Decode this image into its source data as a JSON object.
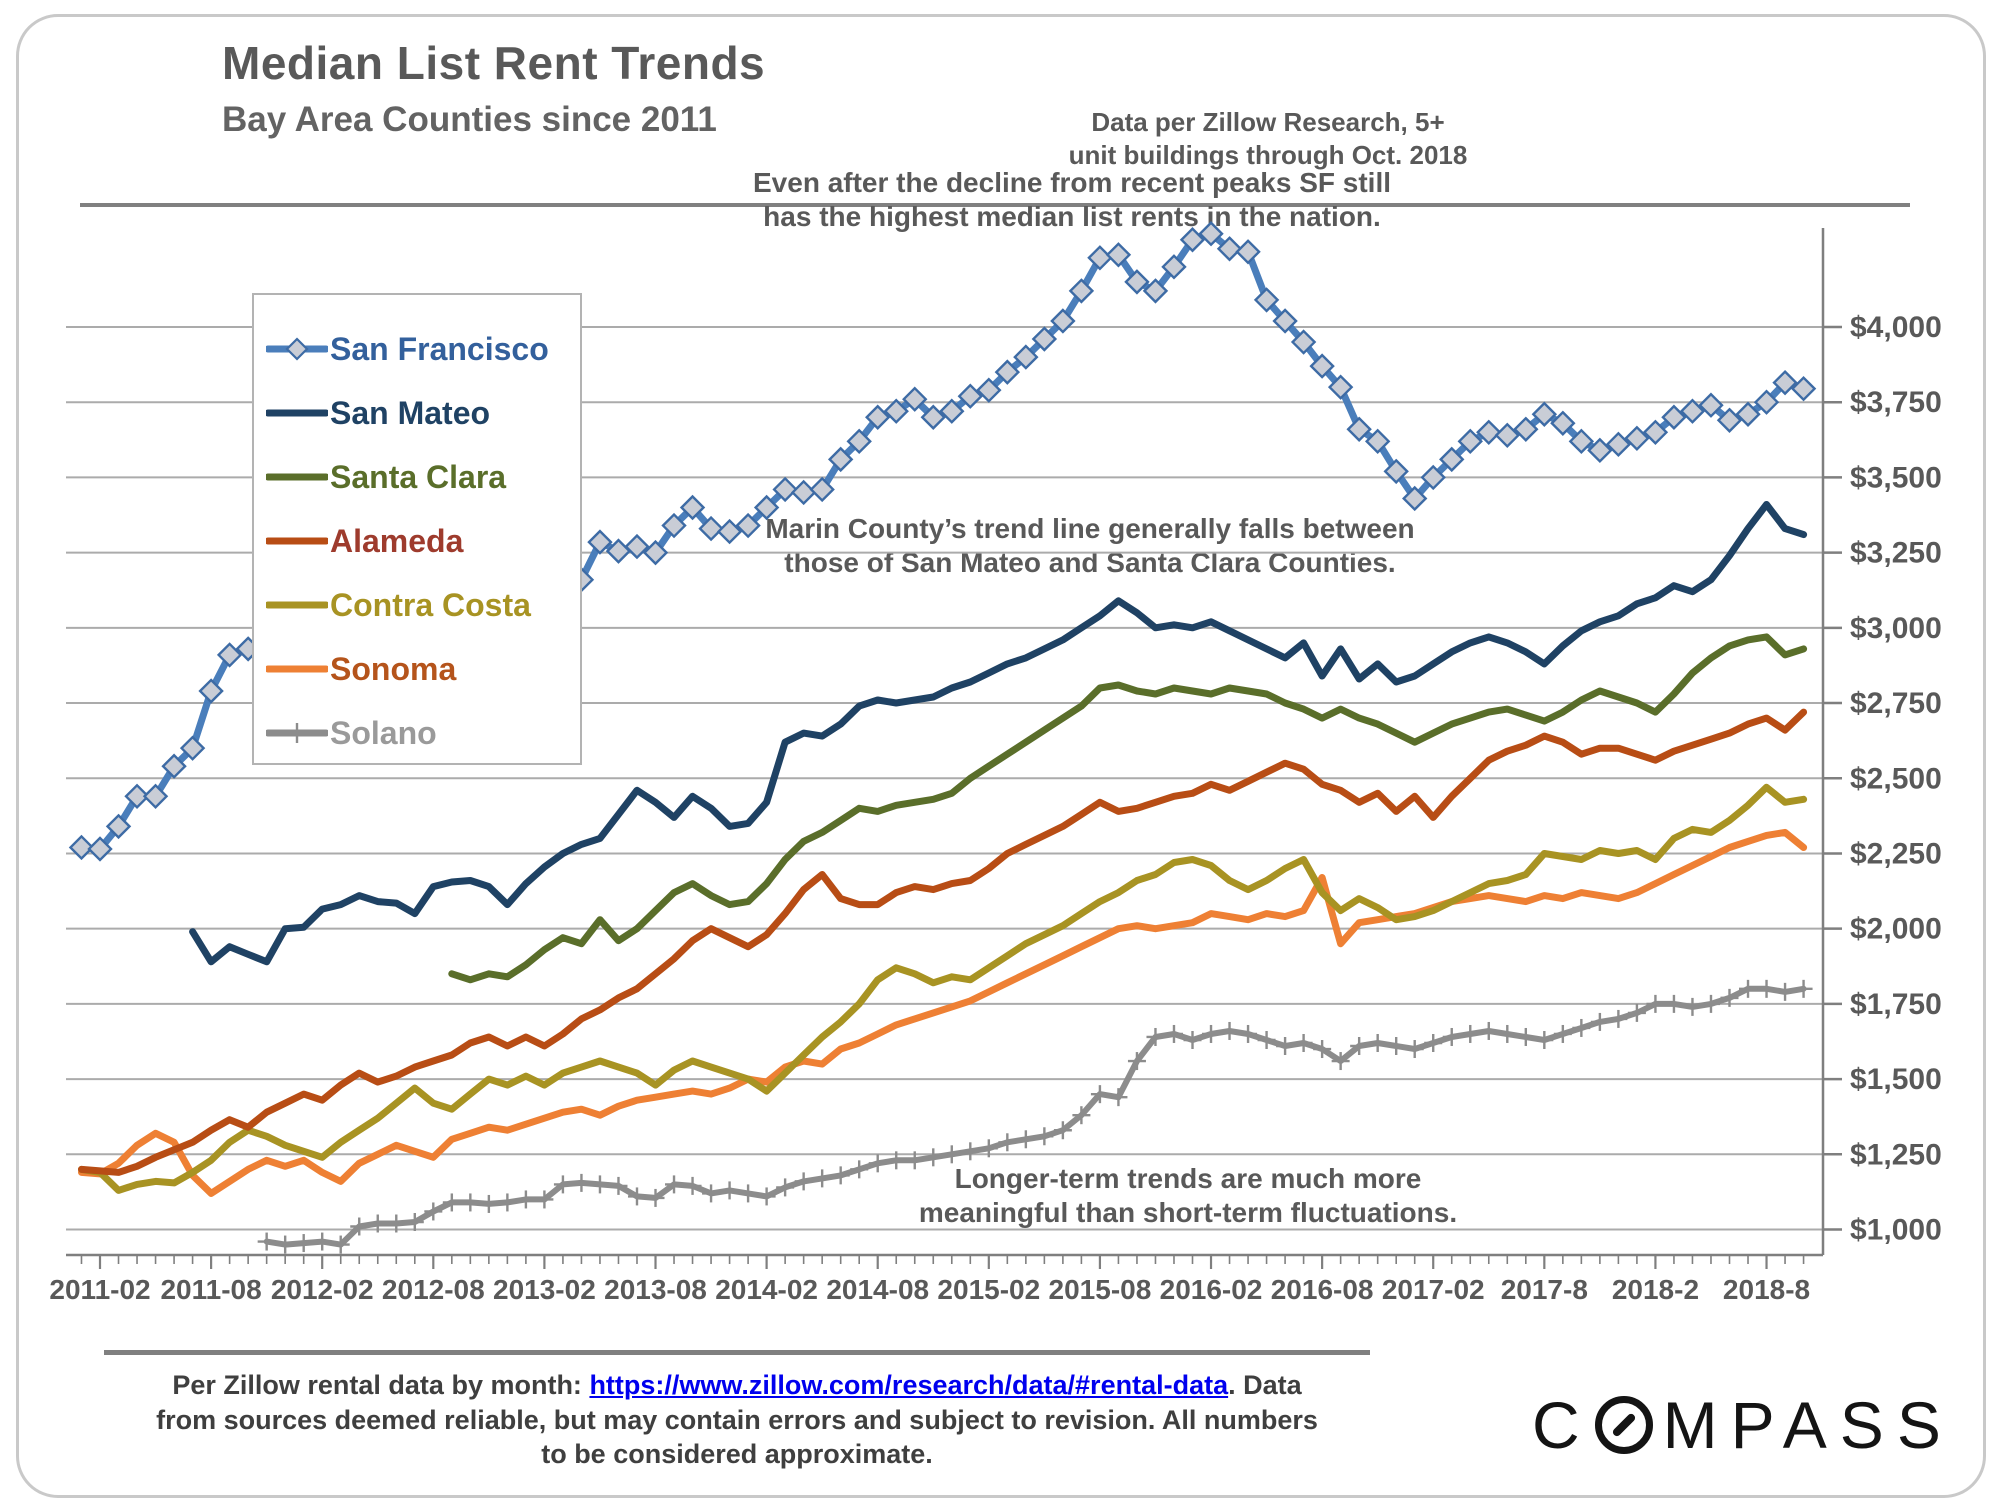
{
  "header": {
    "title": "Median List Rent Trends",
    "subtitle": "Bay Area Counties since 2011",
    "note_line1": "Data per Zillow Research, 5+",
    "note_line2": "unit buildings through Oct. 2018"
  },
  "annotations": {
    "sf_peak": {
      "line1": "Even after the decline from recent peaks SF still",
      "line2": "has the highest median list rents in the nation."
    },
    "marin": {
      "line1": "Marin County’s trend line generally falls between",
      "line2": "those of San Mateo and Santa Clara Counties."
    },
    "longterm": {
      "line1": "Longer-term trends are much more",
      "line2": "meaningful than short-term fluctuations."
    }
  },
  "footer": {
    "line1_prefix": "Per Zillow rental data by month: ",
    "link_text": "https://www.zillow.com/research/data/#rental-data",
    "line1_suffix": ". Data",
    "line2": "from sources deemed reliable, but may contain errors and subject to revision. All numbers",
    "line3": "to be considered approximate."
  },
  "logo": {
    "pre": "C",
    "post": "MPASS"
  },
  "chart_data": {
    "type": "line",
    "title": "Median List Rent Trends",
    "xlabel": "",
    "ylabel": "",
    "y_axis": {
      "min": 1000,
      "max": 4000,
      "step": 250,
      "side": "right",
      "tick_labels": [
        "$4,000",
        "$3,750",
        "$3,500",
        "$3,250",
        "$3,000",
        "$2,750",
        "$2,500",
        "$2,250",
        "$2,000",
        "$1,750",
        "$1,500",
        "$1,250",
        "$1,000"
      ]
    },
    "x_axis": {
      "start_month": "2011-01",
      "end_month": "2018-10",
      "n_points": 94,
      "tick_month_indices": [
        1,
        7,
        13,
        19,
        25,
        31,
        37,
        43,
        49,
        55,
        61,
        67,
        73,
        79,
        85,
        91
      ],
      "tick_labels": [
        "2011-02",
        "2011-08",
        "2012-02",
        "2012-08",
        "2013-02",
        "2013-08",
        "2014-02",
        "2014-08",
        "2015-02",
        "2015-08",
        "2016-02",
        "2016-08",
        "2017-02",
        "2017-8",
        "2018-2",
        "2018-8"
      ]
    },
    "grid": true,
    "legend_position": "upper-left",
    "colors": {
      "gridline": "#ababab",
      "axis": "#7f7f7f",
      "text": "#595959"
    },
    "series": [
      {
        "name": "San Francisco",
        "color": "#4a7ebb",
        "label_color": "#33609c",
        "marker": "diamond",
        "marker_fill": "#c9cdd6",
        "marker_stroke": "#3d6ba5",
        "values": [
          2270,
          2265,
          2340,
          2440,
          2440,
          2540,
          2600,
          2790,
          2910,
          2930,
          2980,
          3040,
          3070,
          3100,
          3080,
          3120,
          3150,
          3170,
          3160,
          3180,
          3150,
          3120,
          3080,
          3050,
          3020,
          3000,
          3060,
          3160,
          3285,
          3255,
          3270,
          3250,
          3340,
          3400,
          3330,
          3320,
          3340,
          3400,
          3460,
          3450,
          3460,
          3560,
          3620,
          3700,
          3720,
          3760,
          3700,
          3720,
          3770,
          3790,
          3850,
          3900,
          3960,
          4020,
          4120,
          4230,
          4240,
          4150,
          4120,
          4200,
          4290,
          4310,
          4260,
          4250,
          4090,
          4020,
          3950,
          3870,
          3800,
          3660,
          3620,
          3520,
          3430,
          3500,
          3560,
          3620,
          3650,
          3640,
          3660,
          3710,
          3680,
          3620,
          3590,
          3610,
          3630,
          3650,
          3700,
          3720,
          3740,
          3690,
          3710,
          3750,
          3815,
          3795
        ]
      },
      {
        "name": "San Mateo",
        "color": "#1f4264",
        "label_color": "#1f4264",
        "marker": "none",
        "values": [
          null,
          null,
          null,
          null,
          null,
          null,
          1990,
          1890,
          1940,
          1915,
          1890,
          2000,
          2005,
          2065,
          2080,
          2110,
          2090,
          2085,
          2050,
          2140,
          2155,
          2160,
          2140,
          2080,
          2150,
          2205,
          2250,
          2280,
          2300,
          2380,
          2460,
          2420,
          2370,
          2440,
          2400,
          2340,
          2350,
          2420,
          2620,
          2650,
          2640,
          2680,
          2740,
          2760,
          2750,
          2760,
          2770,
          2800,
          2820,
          2850,
          2880,
          2900,
          2930,
          2960,
          3000,
          3040,
          3090,
          3050,
          3000,
          3010,
          3000,
          3020,
          2990,
          2960,
          2930,
          2900,
          2950,
          2840,
          2930,
          2830,
          2880,
          2820,
          2840,
          2880,
          2920,
          2950,
          2970,
          2950,
          2920,
          2880,
          2940,
          2990,
          3020,
          3040,
          3080,
          3100,
          3140,
          3120,
          3160,
          3240,
          3330,
          3410,
          3330,
          3310
        ]
      },
      {
        "name": "Santa Clara",
        "color": "#5a6e2a",
        "label_color": "#5a6e2a",
        "marker": "none",
        "values": [
          null,
          null,
          null,
          null,
          null,
          null,
          null,
          null,
          null,
          null,
          null,
          null,
          null,
          null,
          null,
          null,
          null,
          null,
          null,
          null,
          1850,
          1830,
          1850,
          1840,
          1880,
          1930,
          1970,
          1950,
          2030,
          1960,
          2000,
          2060,
          2120,
          2150,
          2110,
          2080,
          2090,
          2150,
          2230,
          2290,
          2320,
          2360,
          2400,
          2390,
          2410,
          2420,
          2430,
          2450,
          2500,
          2540,
          2580,
          2620,
          2660,
          2700,
          2740,
          2800,
          2810,
          2790,
          2780,
          2800,
          2790,
          2780,
          2800,
          2790,
          2780,
          2750,
          2730,
          2700,
          2730,
          2700,
          2680,
          2650,
          2620,
          2650,
          2680,
          2700,
          2720,
          2730,
          2710,
          2690,
          2720,
          2760,
          2790,
          2770,
          2750,
          2720,
          2780,
          2850,
          2900,
          2940,
          2960,
          2970,
          2910,
          2930
        ]
      },
      {
        "name": "Alameda",
        "color": "#b84d15",
        "label_color": "#9e3b2d",
        "marker": "none",
        "values": [
          1200,
          1195,
          1190,
          1210,
          1240,
          1265,
          1290,
          1330,
          1365,
          1340,
          1390,
          1420,
          1450,
          1430,
          1480,
          1520,
          1490,
          1510,
          1540,
          1560,
          1580,
          1620,
          1640,
          1610,
          1640,
          1610,
          1650,
          1700,
          1730,
          1770,
          1800,
          1850,
          1900,
          1960,
          2000,
          1970,
          1940,
          1980,
          2050,
          2130,
          2180,
          2100,
          2080,
          2080,
          2120,
          2140,
          2130,
          2150,
          2160,
          2200,
          2250,
          2280,
          2310,
          2340,
          2380,
          2420,
          2390,
          2400,
          2420,
          2440,
          2450,
          2480,
          2460,
          2490,
          2520,
          2550,
          2530,
          2480,
          2460,
          2420,
          2450,
          2390,
          2440,
          2370,
          2440,
          2500,
          2560,
          2590,
          2610,
          2640,
          2620,
          2580,
          2600,
          2600,
          2580,
          2560,
          2590,
          2610,
          2630,
          2650,
          2680,
          2700,
          2660,
          2720
        ]
      },
      {
        "name": "Contra Costa",
        "color": "#a89323",
        "label_color": "#a89323",
        "marker": "none",
        "values": [
          1200,
          1190,
          1130,
          1150,
          1160,
          1155,
          1190,
          1230,
          1290,
          1330,
          1310,
          1280,
          1260,
          1240,
          1290,
          1330,
          1370,
          1420,
          1470,
          1420,
          1400,
          1450,
          1500,
          1480,
          1510,
          1480,
          1520,
          1540,
          1560,
          1540,
          1520,
          1480,
          1530,
          1560,
          1540,
          1520,
          1500,
          1460,
          1520,
          1580,
          1640,
          1690,
          1750,
          1830,
          1870,
          1850,
          1820,
          1840,
          1830,
          1870,
          1910,
          1950,
          1980,
          2010,
          2050,
          2090,
          2120,
          2160,
          2180,
          2220,
          2230,
          2210,
          2160,
          2130,
          2160,
          2200,
          2230,
          2120,
          2060,
          2100,
          2070,
          2030,
          2040,
          2060,
          2090,
          2120,
          2150,
          2160,
          2180,
          2250,
          2240,
          2230,
          2260,
          2250,
          2260,
          2230,
          2300,
          2330,
          2320,
          2360,
          2410,
          2470,
          2420,
          2430
        ]
      },
      {
        "name": "Sonoma",
        "color": "#ee8034",
        "label_color": "#b5541b",
        "marker": "none",
        "values": [
          1190,
          1185,
          1220,
          1280,
          1320,
          1290,
          1180,
          1120,
          1160,
          1200,
          1230,
          1210,
          1230,
          1190,
          1160,
          1220,
          1250,
          1280,
          1260,
          1240,
          1300,
          1320,
          1340,
          1330,
          1350,
          1370,
          1390,
          1400,
          1380,
          1410,
          1430,
          1440,
          1450,
          1460,
          1450,
          1470,
          1500,
          1490,
          1540,
          1560,
          1550,
          1600,
          1620,
          1650,
          1680,
          1700,
          1720,
          1740,
          1760,
          1790,
          1820,
          1850,
          1880,
          1910,
          1940,
          1970,
          2000,
          2010,
          2000,
          2010,
          2020,
          2050,
          2040,
          2030,
          2050,
          2040,
          2060,
          2170,
          1950,
          2020,
          2030,
          2040,
          2050,
          2070,
          2090,
          2100,
          2110,
          2100,
          2090,
          2110,
          2100,
          2120,
          2110,
          2100,
          2120,
          2150,
          2180,
          2210,
          2240,
          2270,
          2290,
          2310,
          2320,
          2270
        ]
      },
      {
        "name": "Solano",
        "color": "#8c8c8c",
        "label_color": "#9a9a9a",
        "marker": "plus",
        "values": [
          null,
          null,
          null,
          null,
          null,
          null,
          null,
          null,
          null,
          null,
          960,
          950,
          955,
          960,
          950,
          1010,
          1020,
          1020,
          1025,
          1060,
          1090,
          1090,
          1085,
          1090,
          1100,
          1100,
          1150,
          1155,
          1150,
          1145,
          1110,
          1105,
          1150,
          1145,
          1120,
          1130,
          1120,
          1110,
          1140,
          1160,
          1170,
          1180,
          1200,
          1220,
          1230,
          1230,
          1240,
          1250,
          1260,
          1270,
          1290,
          1300,
          1310,
          1330,
          1380,
          1450,
          1440,
          1560,
          1640,
          1650,
          1630,
          1650,
          1660,
          1650,
          1630,
          1610,
          1620,
          1600,
          1560,
          1610,
          1620,
          1610,
          1600,
          1620,
          1640,
          1650,
          1660,
          1650,
          1640,
          1630,
          1650,
          1670,
          1690,
          1700,
          1720,
          1750,
          1750,
          1740,
          1750,
          1770,
          1800,
          1800,
          1790,
          1800
        ]
      }
    ]
  }
}
